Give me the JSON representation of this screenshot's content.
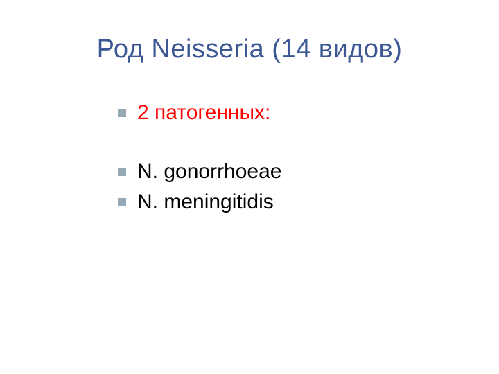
{
  "slide": {
    "title": "Род Neisseria (14 видов)",
    "title_color": "#3b5895",
    "title_fontsize": 38,
    "background_color": "#ffffff",
    "bullet_color": "#95a8b5",
    "bullet_size": 12,
    "body_fontsize": 30,
    "items": [
      {
        "text": "2 патогенных:",
        "color": "#ff0000",
        "gap_after": true
      },
      {
        "text": "N. gonorrhoeae",
        "color": "#000000",
        "gap_after": false
      },
      {
        "text": "N. meningitidis",
        "color": "#000000",
        "gap_after": false
      }
    ]
  }
}
